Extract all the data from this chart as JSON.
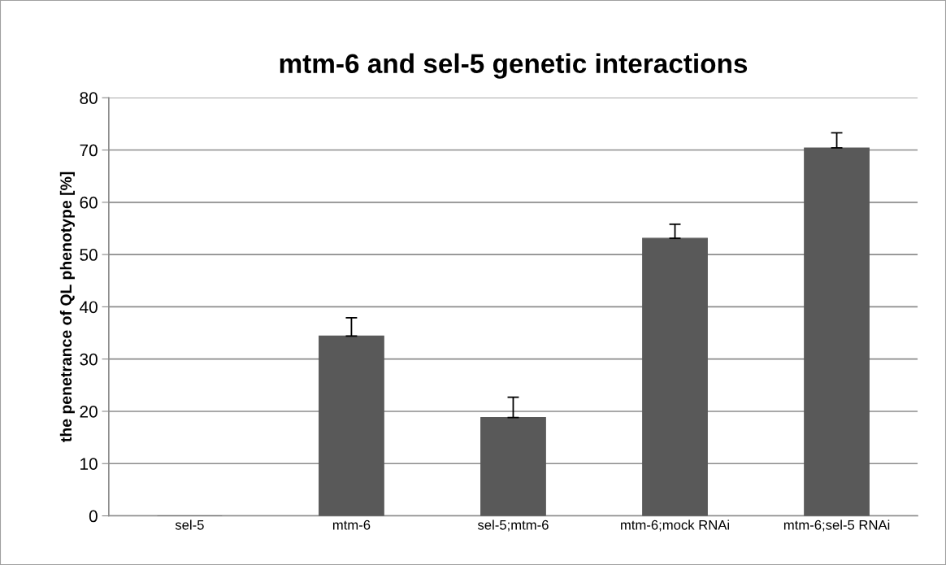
{
  "chart_data": {
    "type": "bar",
    "title": "mtm-6 and sel-5 genetic interactions",
    "ylabel": "the penetrance of QL phenotype [%]",
    "categories": [
      "sel-5",
      "mtm-6",
      "sel-5;mtm-6",
      "mtm-6;mock RNAi",
      "mtm-6;sel-5 RNAi"
    ],
    "values": [
      0,
      34.4,
      18.8,
      53.1,
      70.4
    ],
    "errors": [
      null,
      3.5,
      3.9,
      2.7,
      2.9
    ],
    "color": "#595959",
    "ylim": [
      0,
      80
    ],
    "yticks": [
      0,
      10,
      20,
      30,
      40,
      50,
      60,
      70,
      80
    ],
    "grid": "y"
  }
}
